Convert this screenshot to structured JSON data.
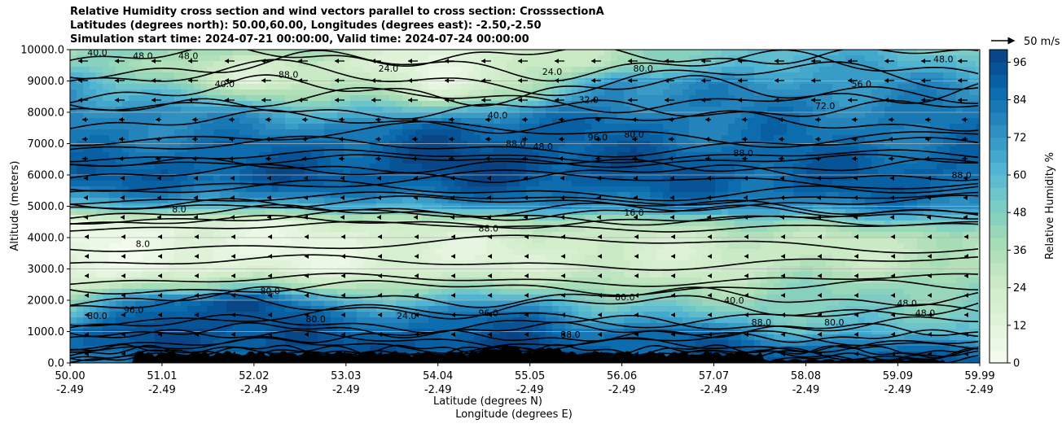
{
  "chart_data": {
    "type": "heatmap",
    "title_lines": [
      "Relative Humidity cross section and wind vectors parallel to cross section: CrosssectionA",
      "Latitudes (degrees north): 50.00,60.00, Longitudes (degrees east): -2.50,-2.50",
      "Simulation start time: 2024-07-21 00:00:00, Valid time: 2024-07-24 00:00:00"
    ],
    "xlabel_lines": [
      "Latitude (degrees N)",
      "Longitude (degrees E)"
    ],
    "ylabel": "Altitude (meters)",
    "colorbar_label": "Relative Humidity %",
    "colormap": "GnBu",
    "color_low": "#f7fcf0",
    "color_high": "#084081",
    "zlim": [
      0,
      100
    ],
    "colorbar_ticks": [
      "0",
      "12",
      "24",
      "36",
      "48",
      "60",
      "72",
      "84",
      "96"
    ],
    "colorbar_tick_values": [
      0,
      12,
      24,
      36,
      48,
      60,
      72,
      84,
      96
    ],
    "ylim": [
      0,
      10000
    ],
    "y_ticks": [
      "0.0",
      "1000.0",
      "2000.0",
      "3000.0",
      "4000.0",
      "5000.0",
      "6000.0",
      "7000.0",
      "8000.0",
      "9000.0",
      "10000.0"
    ],
    "y_tick_values": [
      0,
      1000,
      2000,
      3000,
      4000,
      5000,
      6000,
      7000,
      8000,
      9000,
      10000
    ],
    "xlim": [
      50.0,
      59.99
    ],
    "x_ticks_lat": [
      "50.00",
      "51.01",
      "52.02",
      "53.03",
      "54.04",
      "55.05",
      "56.06",
      "57.07",
      "58.08",
      "59.09",
      "59.99"
    ],
    "x_ticks_lon": [
      "-2.49",
      "-2.49",
      "-2.49",
      "-2.49",
      "-2.49",
      "-2.49",
      "-2.49",
      "-2.49",
      "-2.49",
      "-2.49",
      "-2.49"
    ],
    "x_tick_values": [
      50.0,
      51.01,
      52.02,
      53.03,
      54.04,
      55.05,
      56.06,
      57.07,
      58.08,
      59.09,
      59.99
    ],
    "grid": "horizontal",
    "wind_key_label": "50 m/s",
    "rh_profiles": {
      "altitudes": [
        0,
        500,
        1000,
        1500,
        2000,
        2500,
        3000,
        3500,
        4000,
        4500,
        5000,
        5500,
        6000,
        6500,
        7000,
        7500,
        8000,
        8500,
        9000,
        9500,
        10000
      ],
      "latitudes": [
        50.0,
        51.0,
        52.0,
        53.0,
        54.0,
        55.0,
        56.0,
        57.0,
        58.0,
        59.0,
        60.0
      ],
      "values": [
        [
          80,
          88,
          84,
          60,
          40,
          16,
          8,
          8,
          8,
          12,
          60,
          80,
          88,
          84,
          80,
          80,
          80,
          76,
          72,
          50,
          40
        ],
        [
          84,
          92,
          96,
          96,
          88,
          36,
          12,
          8,
          8,
          12,
          60,
          84,
          92,
          88,
          84,
          80,
          76,
          60,
          40,
          30,
          44
        ],
        [
          88,
          96,
          96,
          96,
          96,
          40,
          12,
          8,
          10,
          16,
          60,
          84,
          92,
          88,
          84,
          76,
          70,
          40,
          16,
          24,
          40
        ],
        [
          88,
          92,
          88,
          80,
          60,
          30,
          14,
          10,
          12,
          20,
          60,
          84,
          92,
          90,
          88,
          80,
          60,
          40,
          30,
          20,
          30
        ],
        [
          92,
          96,
          90,
          80,
          56,
          32,
          16,
          12,
          16,
          28,
          70,
          88,
          96,
          96,
          92,
          88,
          60,
          24,
          12,
          10,
          14
        ],
        [
          96,
          96,
          92,
          88,
          70,
          40,
          20,
          16,
          20,
          30,
          72,
          88,
          96,
          96,
          92,
          90,
          80,
          40,
          24,
          20,
          20
        ],
        [
          92,
          88,
          84,
          60,
          44,
          30,
          22,
          20,
          24,
          36,
          76,
          88,
          92,
          92,
          88,
          84,
          80,
          80,
          76,
          40,
          36
        ],
        [
          92,
          90,
          84,
          60,
          44,
          32,
          24,
          20,
          24,
          40,
          76,
          88,
          90,
          90,
          86,
          84,
          80,
          78,
          72,
          50,
          48
        ],
        [
          96,
          88,
          60,
          48,
          44,
          40,
          30,
          24,
          28,
          44,
          76,
          88,
          90,
          88,
          84,
          82,
          80,
          76,
          72,
          70,
          64
        ],
        [
          96,
          80,
          60,
          52,
          48,
          44,
          32,
          28,
          30,
          50,
          78,
          88,
          90,
          88,
          84,
          82,
          80,
          76,
          72,
          64,
          56
        ],
        [
          96,
          84,
          60,
          52,
          48,
          44,
          34,
          30,
          32,
          52,
          78,
          88,
          90,
          88,
          84,
          82,
          80,
          76,
          72,
          60,
          50
        ]
      ]
    },
    "contour_labels": [
      "40.0",
      "48.0",
      "80.0",
      "88.0",
      "96.0",
      "24.0",
      "16.0",
      "32.0",
      "8.0",
      "64.0",
      "72.0",
      "56.0"
    ],
    "wind_direction": "toward south (westward arrows, leftward)"
  }
}
